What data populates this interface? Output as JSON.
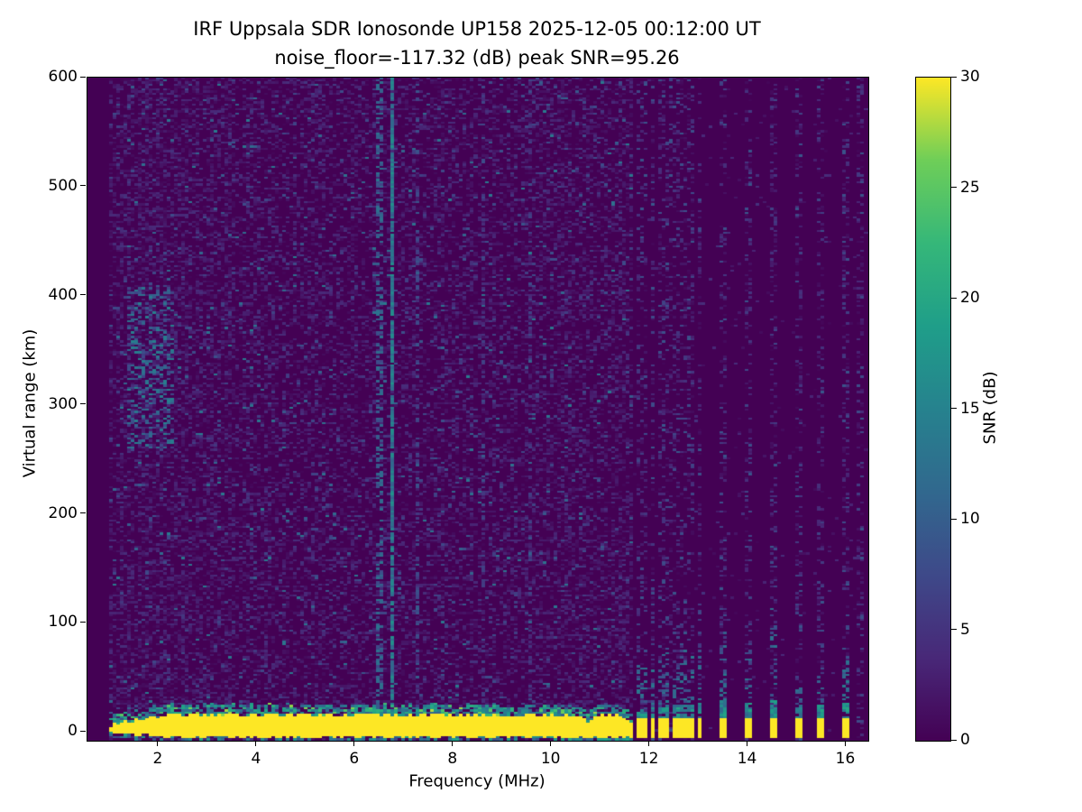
{
  "title": {
    "line1": "IRF Uppsala SDR Ionosonde UP158 2025-12-05 00:12:00  UT",
    "line2": "noise_floor=-117.32 (dB) peak SNR=95.26"
  },
  "station": "UP158",
  "timestamp": "2025-12-05 00:12:00 UT",
  "chart_data": {
    "type": "heatmap",
    "title": "IRF Uppsala SDR Ionosonde UP158 2025-12-05 00:12:00  UT",
    "subtitle": "noise_floor=-117.32 (dB) peak SNR=95.26",
    "xlabel": "Frequency (MHz)",
    "ylabel": "Virtual range (km)",
    "colorbar_label": "SNR (dB)",
    "xlim": [
      0.55,
      16.45
    ],
    "ylim": [
      -8,
      600
    ],
    "clim": [
      0,
      30
    ],
    "x_ticks": [
      2,
      4,
      6,
      8,
      10,
      12,
      14,
      16
    ],
    "y_ticks": [
      0,
      100,
      200,
      300,
      400,
      500,
      600
    ],
    "colorbar_ticks": [
      0,
      5,
      10,
      15,
      20,
      25,
      30
    ],
    "colormap": "viridis",
    "colormap_stops": [
      [
        0.0,
        "#440154"
      ],
      [
        0.125,
        "#482878"
      ],
      [
        0.25,
        "#3e4989"
      ],
      [
        0.375,
        "#31688e"
      ],
      [
        0.5,
        "#26828e"
      ],
      [
        0.625,
        "#1f9e89"
      ],
      [
        0.75,
        "#35b779"
      ],
      [
        0.875,
        "#6ece58"
      ],
      [
        1.0,
        "#fde725"
      ]
    ],
    "noise_floor_db": -117.32,
    "peak_snr_db": 95.26,
    "grid": {
      "cols": 216,
      "rows": 300
    },
    "seed": 20251205,
    "features": {
      "data_start_mhz": 1.0,
      "ground_band": {
        "mhz_range": [
          1.0,
          11.68
        ],
        "core_km": [
          -5,
          15.5
        ],
        "fringe_km": 9,
        "ramp_end_mhz": 2.2,
        "notch_mhz": 10.75,
        "core_snr": 30
      },
      "discrete_stripes": [
        {
          "mhz": 11.8,
          "cap_km": 8,
          "dash_km": 60
        },
        {
          "mhz": 11.93,
          "cap_km": 8,
          "dash_km": 60
        },
        {
          "mhz": 12.07,
          "cap_km": 10,
          "dash_km": 70
        },
        {
          "mhz": 12.24,
          "cap_km": 12,
          "dash_km": 80
        },
        {
          "mhz": 12.38,
          "cap_km": 12,
          "dash_km": 80
        },
        {
          "mhz": 12.53,
          "cap_km": 12,
          "dash_km": 70
        },
        {
          "mhz": 12.7,
          "cap_km": 12,
          "dash_km": 80
        },
        {
          "mhz": 12.84,
          "cap_km": 12,
          "dash_km": 70
        },
        {
          "mhz": 13.02,
          "cap_km": 14,
          "dash_km": 80
        },
        {
          "mhz": 13.5,
          "cap_km": 16,
          "dash_km": 95
        },
        {
          "mhz": 14.0,
          "cap_km": 14,
          "dash_km": 75
        },
        {
          "mhz": 14.52,
          "cap_km": 16,
          "dash_km": 115
        },
        {
          "mhz": 15.05,
          "cap_km": 10,
          "dash_km": 40
        },
        {
          "mhz": 15.5,
          "cap_km": 12,
          "dash_km": 60
        },
        {
          "mhz": 16.0,
          "cap_km": 14,
          "dash_km": 70
        }
      ],
      "interference_lines": [
        {
          "mhz": 6.77,
          "snr_min": 10,
          "snr_max": 17,
          "density": 0.85
        },
        {
          "mhz": 6.5,
          "snr_min": 7,
          "snr_max": 13,
          "density": 0.4
        },
        {
          "mhz": 7.3,
          "snr_min": 5,
          "snr_max": 10,
          "density": 0.3
        },
        {
          "mhz": 8.62,
          "snr_min": 4,
          "snr_max": 8,
          "density": 0.22
        },
        {
          "mhz": 9.55,
          "snr_min": 4,
          "snr_max": 8,
          "density": 0.22
        }
      ],
      "noise_patch": {
        "mhz_range": [
          1.35,
          2.35
        ],
        "km_range": [
          260,
          410
        ],
        "snr_min": 6,
        "snr_max": 15,
        "density": 0.3
      },
      "faint_columns_mhz": [
        16.28
      ]
    }
  },
  "colors": {
    "figure_background": "#ffffff",
    "axes_foreground": "#000000",
    "heatmap_min": "#440154",
    "heatmap_max": "#fde725"
  }
}
